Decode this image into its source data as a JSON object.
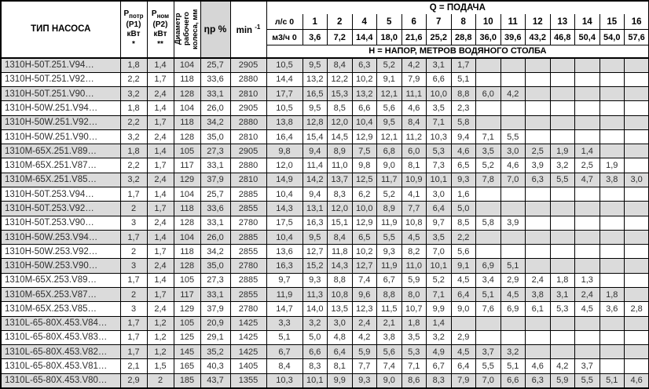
{
  "table": {
    "header": {
      "pump_type": "ТИП НАСОСА",
      "p_input": {
        "symbol": "P",
        "sub": "потр",
        "alt": "(P1)",
        "unit": "кВт",
        "note": "*"
      },
      "p_nominal": {
        "symbol": "P",
        "sub": "ном",
        "alt": "(P2)",
        "unit": "кВт",
        "note": "**"
      },
      "impeller_diameter": "Диаметр рабочего колеса, мм",
      "efficiency": "ηp %",
      "speed_base": "min",
      "speed_sup": "-1",
      "q_title": "Q = ПОДАЧА",
      "flow_ls_label": "л/с 0",
      "flow_m3h_label": "м3/ч 0",
      "flow_ls": [
        "1",
        "2",
        "4",
        "5",
        "6",
        "7",
        "8",
        "10",
        "11",
        "12",
        "13",
        "14",
        "15",
        "16"
      ],
      "flow_m3h": [
        "3,6",
        "7,2",
        "14,4",
        "18,0",
        "21,6",
        "25,2",
        "28,8",
        "36,0",
        "39,6",
        "43,2",
        "46,8",
        "50,4",
        "54,0",
        "57,6"
      ],
      "head_title": "Н = НАПОР, МЕТРОВ ВОДЯНОГО СТОЛБА"
    },
    "rows": [
      {
        "type": "1310H-50T.251.V94…",
        "p1": "1,8",
        "p2": "1,4",
        "dia": "104",
        "eta": "25,7",
        "rpm": "2905",
        "head": [
          "10,5",
          "9,5",
          "8,4",
          "6,3",
          "5,2",
          "4,2",
          "3,1",
          "1,7"
        ]
      },
      {
        "type": "1310H-50T.251.V92…",
        "p1": "2,2",
        "p2": "1,7",
        "dia": "118",
        "eta": "33,6",
        "rpm": "2880",
        "head": [
          "14,4",
          "13,2",
          "12,2",
          "10,2",
          "9,1",
          "7,9",
          "6,6",
          "5,1"
        ]
      },
      {
        "type": "1310H-50T.251.V90…",
        "p1": "3,2",
        "p2": "2,4",
        "dia": "128",
        "eta": "33,1",
        "rpm": "2810",
        "head": [
          "17,7",
          "16,5",
          "15,3",
          "13,2",
          "12,1",
          "11,1",
          "10,0",
          "8,8",
          "6,0",
          "4,2"
        ]
      },
      {
        "type": "1310H-50W.251.V94…",
        "p1": "1,8",
        "p2": "1,4",
        "dia": "104",
        "eta": "26,0",
        "rpm": "2905",
        "head": [
          "10,5",
          "9,5",
          "8,5",
          "6,6",
          "5,6",
          "4,6",
          "3,5",
          "2,3"
        ]
      },
      {
        "type": "1310H-50W.251.V92…",
        "p1": "2,2",
        "p2": "1,7",
        "dia": "118",
        "eta": "34,2",
        "rpm": "2880",
        "head": [
          "13,8",
          "12,8",
          "12,0",
          "10,4",
          "9,5",
          "8,4",
          "7,1",
          "5,8"
        ]
      },
      {
        "type": "1310H-50W.251.V90…",
        "p1": "3,2",
        "p2": "2,4",
        "dia": "128",
        "eta": "35,0",
        "rpm": "2810",
        "head": [
          "16,4",
          "15,4",
          "14,5",
          "12,9",
          "12,1",
          "11,2",
          "10,3",
          "9,4",
          "7,1",
          "5,5"
        ]
      },
      {
        "type": "1310M-65X.251.V89…",
        "p1": "1,8",
        "p2": "1,4",
        "dia": "105",
        "eta": "27,3",
        "rpm": "2905",
        "head": [
          "9,8",
          "9,4",
          "8,9",
          "7,5",
          "6,8",
          "6,0",
          "5,3",
          "4,6",
          "3,5",
          "3,0",
          "2,5",
          "1,9",
          "1,4"
        ]
      },
      {
        "type": "1310M-65X.251.V87…",
        "p1": "2,2",
        "p2": "1,7",
        "dia": "117",
        "eta": "33,1",
        "rpm": "2880",
        "head": [
          "12,0",
          "11,4",
          "11,0",
          "9,8",
          "9,0",
          "8,1",
          "7,3",
          "6,5",
          "5,2",
          "4,6",
          "3,9",
          "3,2",
          "2,5",
          "1,9"
        ]
      },
      {
        "type": "1310M-65X.251.V85…",
        "p1": "3,2",
        "p2": "2,4",
        "dia": "129",
        "eta": "37,9",
        "rpm": "2810",
        "head": [
          "14,9",
          "14,2",
          "13,7",
          "12,5",
          "11,7",
          "10,9",
          "10,1",
          "9,3",
          "7,8",
          "7,0",
          "6,3",
          "5,5",
          "4,7",
          "3,8",
          "3,0"
        ]
      },
      {
        "type": "1310H-50T.253.V94…",
        "p1": "1,7",
        "p2": "1,4",
        "dia": "104",
        "eta": "25,7",
        "rpm": "2885",
        "head": [
          "10,4",
          "9,4",
          "8,3",
          "6,2",
          "5,2",
          "4,1",
          "3,0",
          "1,6"
        ]
      },
      {
        "type": "1310H-50T.253.V92…",
        "p1": "2",
        "p2": "1,7",
        "dia": "118",
        "eta": "33,6",
        "rpm": "2855",
        "head": [
          "14,3",
          "13,1",
          "12,0",
          "10,0",
          "8,9",
          "7,7",
          "6,4",
          "5,0"
        ]
      },
      {
        "type": "1310H-50T.253.V90…",
        "p1": "3",
        "p2": "2,4",
        "dia": "128",
        "eta": "33,1",
        "rpm": "2780",
        "head": [
          "17,5",
          "16,3",
          "15,1",
          "12,9",
          "11,9",
          "10,8",
          "9,7",
          "8,5",
          "5,8",
          "3,9"
        ]
      },
      {
        "type": "1310H-50W.253.V94…",
        "p1": "1,7",
        "p2": "1,4",
        "dia": "104",
        "eta": "26,0",
        "rpm": "2885",
        "head": [
          "10,4",
          "9,5",
          "8,4",
          "6,5",
          "5,5",
          "4,5",
          "3,5",
          "2,2"
        ]
      },
      {
        "type": "1310H-50W.253.V92…",
        "p1": "2",
        "p2": "1,7",
        "dia": "118",
        "eta": "34,2",
        "rpm": "2855",
        "head": [
          "13,6",
          "12,7",
          "11,8",
          "10,2",
          "9,3",
          "8,2",
          "7,0",
          "5,6"
        ]
      },
      {
        "type": "1310H-50W.253.V90…",
        "p1": "3",
        "p2": "2,4",
        "dia": "128",
        "eta": "35,0",
        "rpm": "2780",
        "head": [
          "16,3",
          "15,2",
          "14,3",
          "12,7",
          "11,9",
          "11,0",
          "10,1",
          "9,1",
          "6,9",
          "5,1"
        ]
      },
      {
        "type": "1310M-65X.253.V89…",
        "p1": "1,7",
        "p2": "1,4",
        "dia": "105",
        "eta": "27,3",
        "rpm": "2885",
        "head": [
          "9,7",
          "9,3",
          "8,8",
          "7,4",
          "6,7",
          "5,9",
          "5,2",
          "4,5",
          "3,4",
          "2,9",
          "2,4",
          "1,8",
          "1,3"
        ]
      },
      {
        "type": "1310M-65X.253.V87…",
        "p1": "2",
        "p2": "1,7",
        "dia": "117",
        "eta": "33,1",
        "rpm": "2855",
        "head": [
          "11,9",
          "11,3",
          "10,8",
          "9,6",
          "8,8",
          "8,0",
          "7,1",
          "6,4",
          "5,1",
          "4,5",
          "3,8",
          "3,1",
          "2,4",
          "1,8"
        ]
      },
      {
        "type": "1310M-65X.253.V85…",
        "p1": "3",
        "p2": "2,4",
        "dia": "129",
        "eta": "37,9",
        "rpm": "2780",
        "head": [
          "14,7",
          "14,0",
          "13,5",
          "12,3",
          "11,5",
          "10,7",
          "9,9",
          "9,0",
          "7,6",
          "6,9",
          "6,1",
          "5,3",
          "4,5",
          "3,6",
          "2,8"
        ]
      },
      {
        "type": "1310L-65-80X.453.V84…",
        "p1": "1,7",
        "p2": "1,2",
        "dia": "105",
        "eta": "20,9",
        "rpm": "1425",
        "head": [
          "3,3",
          "3,2",
          "3,0",
          "2,4",
          "2,1",
          "1,8",
          "1,4"
        ]
      },
      {
        "type": "1310L-65-80X.453.V83…",
        "p1": "1,7",
        "p2": "1,2",
        "dia": "125",
        "eta": "29,1",
        "rpm": "1425",
        "head": [
          "5,1",
          "5,0",
          "4,8",
          "4,2",
          "3,8",
          "3,5",
          "3,2",
          "2,9"
        ]
      },
      {
        "type": "1310L-65-80X.453.V82…",
        "p1": "1,7",
        "p2": "1,2",
        "dia": "145",
        "eta": "35,2",
        "rpm": "1425",
        "head": [
          "6,7",
          "6,6",
          "6,4",
          "5,9",
          "5,6",
          "5,3",
          "4,9",
          "4,5",
          "3,7",
          "3,2"
        ]
      },
      {
        "type": "1310L-65-80X.453.V81…",
        "p1": "2,1",
        "p2": "1,5",
        "dia": "165",
        "eta": "40,3",
        "rpm": "1405",
        "head": [
          "8,4",
          "8,3",
          "8,1",
          "7,7",
          "7,4",
          "7,1",
          "6,7",
          "6,4",
          "5,5",
          "5,1",
          "4,6",
          "4,2",
          "3,7"
        ]
      },
      {
        "type": "1310L-65-80X.453.V80…",
        "p1": "2,9",
        "p2": "2",
        "dia": "185",
        "eta": "43,7",
        "rpm": "1355",
        "head": [
          "10,3",
          "10,1",
          "9,9",
          "9,3",
          "9,0",
          "8,6",
          "8,3",
          "7,9",
          "7,0",
          "6,6",
          "6,3",
          "5,9",
          "5,5",
          "5,1",
          "4,6"
        ]
      }
    ],
    "shade_color": "#dbdbdb",
    "eta_header_color": "#d6d6d6"
  }
}
